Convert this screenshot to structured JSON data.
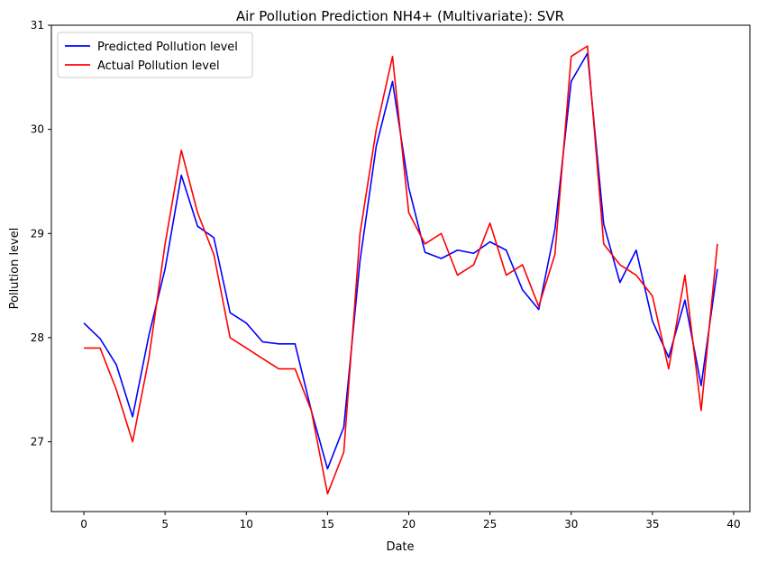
{
  "chart_data": {
    "type": "line",
    "title": "Air Pollution Prediction NH4+ (Multivariate): SVR",
    "xlabel": "Date",
    "ylabel": "Pollution level",
    "xlim": [
      -2,
      41
    ],
    "ylim": [
      26.33,
      31.0
    ],
    "xticks": [
      0,
      5,
      10,
      15,
      20,
      25,
      30,
      35,
      40
    ],
    "yticks": [
      27,
      28,
      29,
      30,
      31
    ],
    "grid": false,
    "legend_position": "top-left",
    "x": [
      0,
      1,
      2,
      3,
      4,
      5,
      6,
      7,
      8,
      9,
      10,
      11,
      12,
      13,
      14,
      15,
      16,
      17,
      18,
      19,
      20,
      21,
      22,
      23,
      24,
      25,
      26,
      27,
      28,
      29,
      30,
      31,
      32,
      33,
      34,
      35,
      36,
      37,
      38,
      39
    ],
    "series": [
      {
        "name": "Predicted Pollution level",
        "color": "#0000ff",
        "values": [
          28.14,
          27.99,
          27.74,
          27.24,
          28.02,
          28.66,
          29.56,
          29.07,
          28.96,
          28.24,
          28.14,
          27.96,
          27.94,
          27.94,
          27.3,
          26.74,
          27.14,
          28.74,
          29.84,
          30.46,
          29.44,
          28.82,
          28.76,
          28.84,
          28.81,
          28.92,
          28.84,
          28.46,
          28.27,
          29.04,
          30.46,
          30.73,
          29.09,
          28.53,
          28.84,
          28.16,
          27.81,
          28.36,
          27.54,
          28.66
        ]
      },
      {
        "name": "Actual Pollution level",
        "color": "#ff0000",
        "values": [
          27.9,
          27.9,
          27.5,
          27.0,
          27.8,
          28.9,
          29.8,
          29.2,
          28.8,
          28.0,
          27.9,
          27.8,
          27.7,
          27.7,
          27.3,
          26.5,
          26.9,
          29.0,
          30.0,
          30.7,
          29.2,
          28.9,
          29.0,
          28.6,
          28.7,
          29.1,
          28.6,
          28.7,
          28.3,
          28.8,
          30.7,
          30.8,
          28.9,
          28.7,
          28.6,
          28.4,
          27.7,
          28.6,
          27.3,
          28.9
        ]
      }
    ]
  }
}
